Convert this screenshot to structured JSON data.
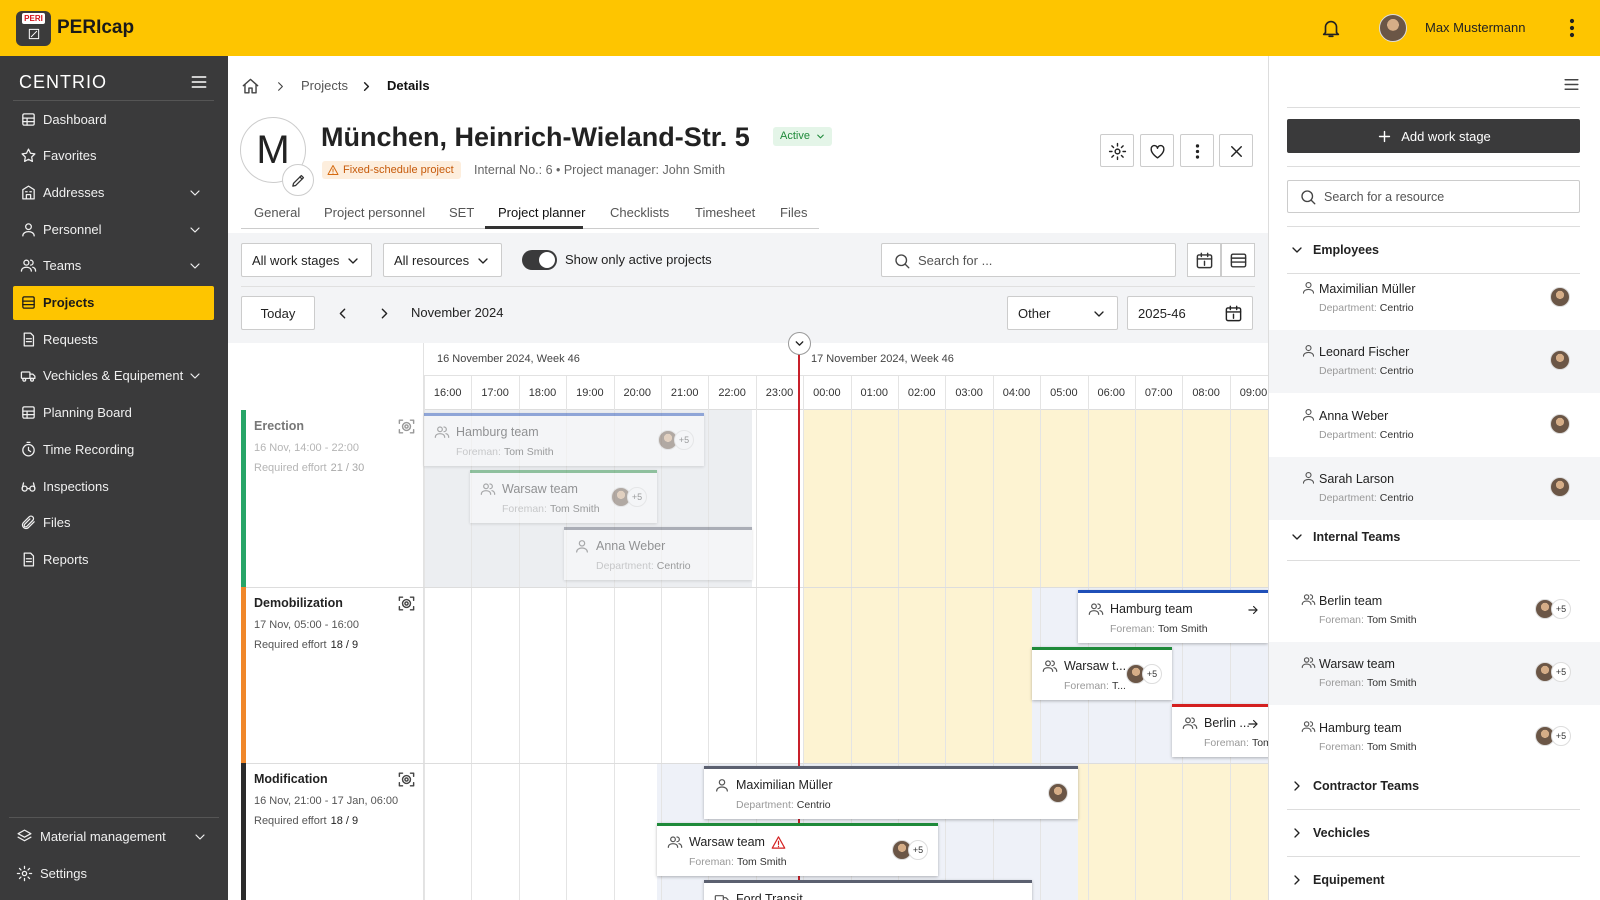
{
  "header": {
    "logo_badge": "PERI",
    "app_name": "PERIcap",
    "user_name": "Max Mustermann"
  },
  "sidebar": {
    "logo": "CENTRIO",
    "items": [
      {
        "label": "Dashboard"
      },
      {
        "label": "Favorites"
      },
      {
        "label": "Addresses",
        "expandable": true
      },
      {
        "label": "Personnel",
        "expandable": true
      },
      {
        "label": "Teams",
        "expandable": true
      },
      {
        "label": "Projects",
        "active": true
      },
      {
        "label": "Requests"
      },
      {
        "label": "Vechicles & Equipement",
        "expandable": true
      },
      {
        "label": "Planning Board"
      },
      {
        "label": "Time Recording"
      },
      {
        "label": "Inspections"
      },
      {
        "label": "Files"
      },
      {
        "label": "Reports"
      }
    ],
    "bottom_items": [
      {
        "label": "Material management",
        "expandable": true
      },
      {
        "label": "Settings"
      }
    ]
  },
  "breadcrumb": [
    "Projects",
    "Details"
  ],
  "project": {
    "initial": "M",
    "title": "München, Heinrich-Wieland-Str. 5",
    "status": "Active",
    "tag": "Fixed-schedule project",
    "meta": "Internal No.: 6 • Project manager: John Smith"
  },
  "tabs": [
    {
      "label": "General"
    },
    {
      "label": "Project personnel"
    },
    {
      "label": "SET"
    },
    {
      "label": "Project planner",
      "active": true
    },
    {
      "label": "Checklists"
    },
    {
      "label": "Timesheet"
    },
    {
      "label": "Files"
    }
  ],
  "filters": {
    "work_stages": "All work stages",
    "resources": "All resources",
    "toggle_label": "Show only active projects",
    "toggle_on": true,
    "search_placeholder": "Search for ...",
    "today": "Today",
    "month": "November 2024",
    "view": "Other",
    "week": "2025-46"
  },
  "planner": {
    "days": [
      "16 November 2024, Week 46",
      "17 November 2024, Week 46"
    ],
    "hours": [
      "16:00",
      "17:00",
      "18:00",
      "19:00",
      "20:00",
      "21:00",
      "22:00",
      "23:00",
      "00:00",
      "01:00",
      "02:00",
      "03:00",
      "04:00",
      "05:00",
      "06:00",
      "07:00",
      "08:00",
      "09:00"
    ],
    "stages": [
      {
        "name": "Erection",
        "dates": "16 Nov, 14:00 - 22:00",
        "effort_label": "Required effort",
        "effort": "21 / 30",
        "color": "#27a567",
        "faded": true,
        "assignments": [
          {
            "title": "Hamburg team",
            "label": "Foreman:",
            "value": "Tom Smith",
            "badge": "+5",
            "kind": "team",
            "color": "#1f4fb8",
            "faded": true
          },
          {
            "title": "Warsaw team",
            "label": "Foreman:",
            "value": "Tom Smith",
            "badge": "+5",
            "kind": "team",
            "color": "#1f8a3a",
            "faded": true
          },
          {
            "title": "Anna Weber",
            "label": "Department:",
            "value": "Centrio",
            "kind": "person",
            "color": "#5b6070",
            "faded": true
          }
        ]
      },
      {
        "name": "Demobilization",
        "dates": "17 Nov, 05:00 - 16:00",
        "effort_label": "Required effort",
        "effort": "18 / 9",
        "color": "#f0872a",
        "assignments": [
          {
            "title": "Hamburg team",
            "label": "Foreman:",
            "value": "Tom Smith",
            "kind": "team",
            "color": "#1f4fb8",
            "arrow": true
          },
          {
            "title": "Warsaw t...",
            "label": "Foreman:",
            "value": "T...",
            "badge": "+5",
            "kind": "team",
            "color": "#1f8a3a"
          },
          {
            "title": "Berlin ...",
            "label": "Foreman:",
            "value": "Tom Smith",
            "kind": "team",
            "color": "#d42020",
            "arrow": true
          }
        ]
      },
      {
        "name": "Modification",
        "dates": "16 Nov, 21:00 - 17 Jan, 06:00",
        "effort_label": "Required effort",
        "effort": "18 / 9",
        "color": "#2b2b2b",
        "assignments": [
          {
            "title": "Maximilian Müller",
            "label": "Department:",
            "value": "Centrio",
            "kind": "person",
            "color": "#5b6070",
            "avatar": true
          },
          {
            "title": "Warsaw team",
            "label": "Foreman:",
            "value": "Tom Smith",
            "badge": "+5",
            "kind": "team",
            "color": "#1f8a3a",
            "warning": true
          },
          {
            "title": "Ford Transit",
            "kind": "vehicle",
            "color": "#5b6070"
          }
        ]
      }
    ]
  },
  "resources": {
    "add_button": "Add work stage",
    "search_placeholder": "Search for a resource",
    "groups": [
      {
        "title": "Employees",
        "expanded": true,
        "items": [
          {
            "name": "Maximilian Müller",
            "label": "Department:",
            "value": "Centrio",
            "kind": "person"
          },
          {
            "name": "Leonard Fischer",
            "label": "Department:",
            "value": "Centrio",
            "kind": "person"
          },
          {
            "name": "Anna Weber",
            "label": "Department:",
            "value": "Centrio",
            "kind": "person"
          },
          {
            "name": "Sarah Larson",
            "label": "Department:",
            "value": "Centrio",
            "kind": "person"
          }
        ]
      },
      {
        "title": "Internal Teams",
        "expanded": true,
        "items": [
          {
            "name": "Berlin team",
            "label": "Foreman:",
            "value": "Tom Smith",
            "badge": "+5",
            "kind": "team"
          },
          {
            "name": "Warsaw team",
            "label": "Foreman:",
            "value": "Tom Smith",
            "badge": "+5",
            "kind": "team"
          },
          {
            "name": "Hamburg team",
            "label": "Foreman:",
            "value": "Tom Smith",
            "badge": "+5",
            "kind": "team"
          }
        ]
      },
      {
        "title": "Contractor Teams"
      },
      {
        "title": "Vechicles"
      },
      {
        "title": "Equipement"
      }
    ]
  }
}
